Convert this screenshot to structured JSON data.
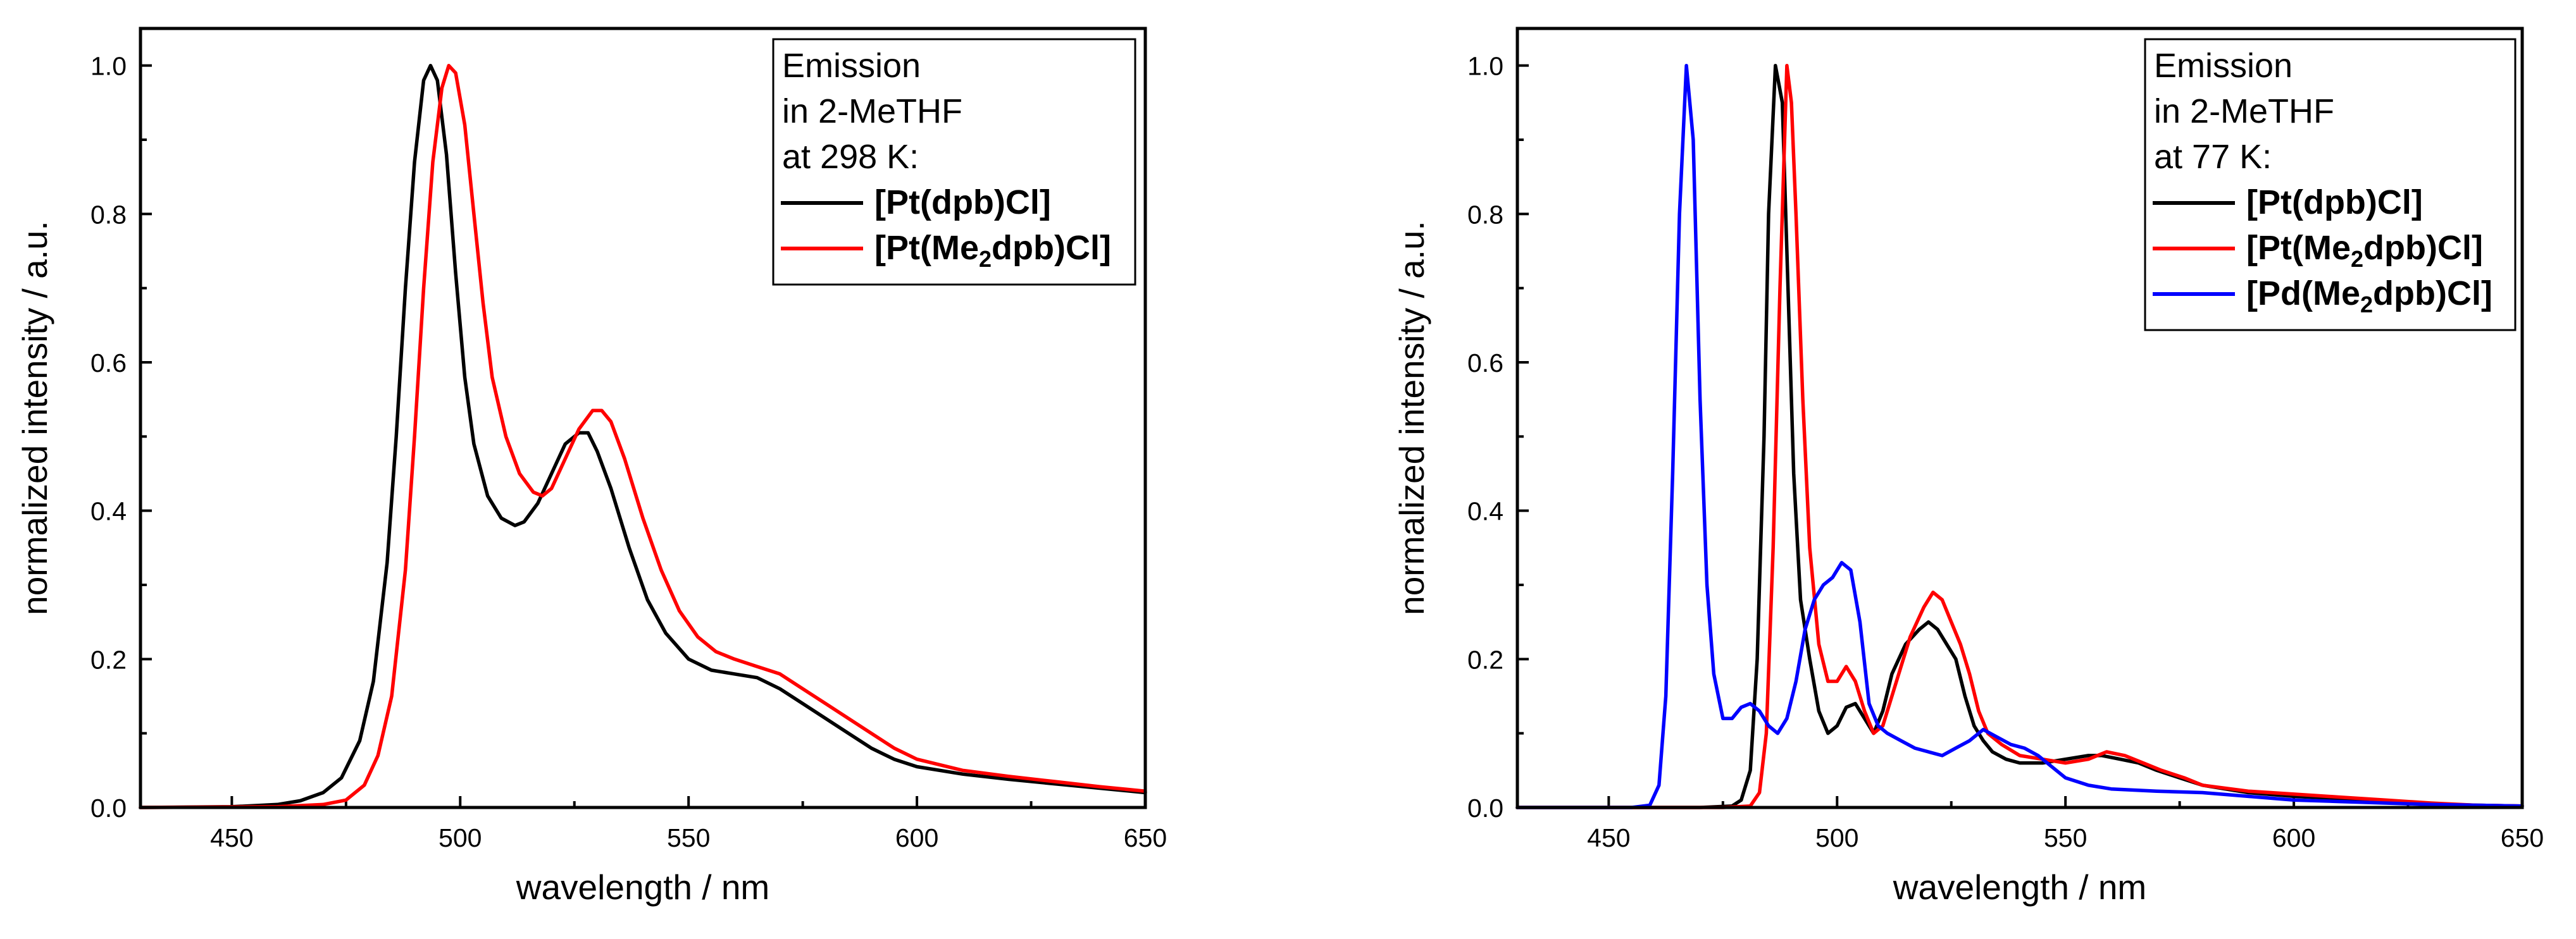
{
  "chart_data": [
    {
      "type": "line",
      "xlabel": "wavelength / nm",
      "ylabel": "normalized intensity / a.u.",
      "xlim": [
        430,
        650
      ],
      "ylim": [
        0,
        1.05
      ],
      "x_ticks": [
        "450",
        "500",
        "550",
        "600",
        "650"
      ],
      "y_ticks": [
        "0.0",
        "0.2",
        "0.4",
        "0.6",
        "0.8",
        "1.0"
      ],
      "legend": {
        "position": "top-right",
        "header": [
          "Emission",
          "in 2-MeTHF",
          "at 298 K:"
        ]
      },
      "series": [
        {
          "name": "[Pt(dpb)Cl]",
          "label_parts": [
            "[Pt(dpb)Cl]"
          ],
          "color": "#000000",
          "points": [
            [
              430,
              0
            ],
            [
              450,
              0.001
            ],
            [
              460,
              0.004
            ],
            [
              465,
              0.009
            ],
            [
              470,
              0.02
            ],
            [
              474,
              0.04
            ],
            [
              478,
              0.09
            ],
            [
              481,
              0.17
            ],
            [
              484,
              0.33
            ],
            [
              486,
              0.5
            ],
            [
              488,
              0.7
            ],
            [
              490,
              0.87
            ],
            [
              492,
              0.98
            ],
            [
              493.5,
              1.0
            ],
            [
              495,
              0.98
            ],
            [
              497,
              0.88
            ],
            [
              499,
              0.72
            ],
            [
              501,
              0.58
            ],
            [
              503,
              0.49
            ],
            [
              506,
              0.42
            ],
            [
              509,
              0.39
            ],
            [
              512,
              0.38
            ],
            [
              514,
              0.385
            ],
            [
              517,
              0.41
            ],
            [
              520,
              0.45
            ],
            [
              523,
              0.49
            ],
            [
              526,
              0.505
            ],
            [
              528,
              0.505
            ],
            [
              530,
              0.48
            ],
            [
              533,
              0.43
            ],
            [
              537,
              0.35
            ],
            [
              541,
              0.28
            ],
            [
              545,
              0.235
            ],
            [
              550,
              0.2
            ],
            [
              555,
              0.185
            ],
            [
              560,
              0.18
            ],
            [
              565,
              0.175
            ],
            [
              570,
              0.16
            ],
            [
              575,
              0.14
            ],
            [
              580,
              0.12
            ],
            [
              585,
              0.1
            ],
            [
              590,
              0.08
            ],
            [
              595,
              0.065
            ],
            [
              600,
              0.055
            ],
            [
              610,
              0.045
            ],
            [
              620,
              0.038
            ],
            [
              630,
              0.032
            ],
            [
              640,
              0.026
            ],
            [
              650,
              0.02
            ]
          ]
        },
        {
          "name": "[Pt(Me2dpb)Cl]",
          "label_parts": [
            "[Pt(Me",
            "2",
            "dpb)Cl]"
          ],
          "color": "#ff0000",
          "points": [
            [
              430,
              0
            ],
            [
              460,
              0.001
            ],
            [
              470,
              0.004
            ],
            [
              475,
              0.01
            ],
            [
              479,
              0.03
            ],
            [
              482,
              0.07
            ],
            [
              485,
              0.15
            ],
            [
              488,
              0.32
            ],
            [
              490,
              0.5
            ],
            [
              492,
              0.7
            ],
            [
              494,
              0.87
            ],
            [
              496,
              0.97
            ],
            [
              497.5,
              1.0
            ],
            [
              499,
              0.99
            ],
            [
              501,
              0.92
            ],
            [
              503,
              0.8
            ],
            [
              505,
              0.68
            ],
            [
              507,
              0.58
            ],
            [
              510,
              0.5
            ],
            [
              513,
              0.45
            ],
            [
              516,
              0.425
            ],
            [
              518,
              0.42
            ],
            [
              520,
              0.43
            ],
            [
              523,
              0.47
            ],
            [
              526,
              0.51
            ],
            [
              529,
              0.535
            ],
            [
              531,
              0.535
            ],
            [
              533,
              0.52
            ],
            [
              536,
              0.47
            ],
            [
              540,
              0.39
            ],
            [
              544,
              0.32
            ],
            [
              548,
              0.265
            ],
            [
              552,
              0.23
            ],
            [
              556,
              0.21
            ],
            [
              560,
              0.2
            ],
            [
              565,
              0.19
            ],
            [
              570,
              0.18
            ],
            [
              575,
              0.16
            ],
            [
              580,
              0.14
            ],
            [
              585,
              0.12
            ],
            [
              590,
              0.1
            ],
            [
              595,
              0.08
            ],
            [
              600,
              0.065
            ],
            [
              610,
              0.05
            ],
            [
              620,
              0.042
            ],
            [
              630,
              0.035
            ],
            [
              640,
              0.028
            ],
            [
              650,
              0.022
            ]
          ]
        }
      ]
    },
    {
      "type": "line",
      "xlabel": "wavelength / nm",
      "ylabel": "normalized intensity / a.u.",
      "xlim": [
        430,
        650
      ],
      "ylim": [
        0,
        1.05
      ],
      "x_ticks": [
        "450",
        "500",
        "550",
        "600",
        "650"
      ],
      "y_ticks": [
        "0.0",
        "0.2",
        "0.4",
        "0.6",
        "0.8",
        "1.0"
      ],
      "legend": {
        "position": "top-right",
        "header": [
          "Emission",
          "in 2-MeTHF",
          "at 77 K:"
        ]
      },
      "series": [
        {
          "name": "[Pt(dpb)Cl]",
          "label_parts": [
            "[Pt(dpb)Cl]"
          ],
          "color": "#000000",
          "points": [
            [
              430,
              0
            ],
            [
              470,
              0
            ],
            [
              477,
              0.002
            ],
            [
              479,
              0.01
            ],
            [
              481,
              0.05
            ],
            [
              482.5,
              0.2
            ],
            [
              484,
              0.5
            ],
            [
              485,
              0.8
            ],
            [
              486.5,
              1.0
            ],
            [
              488,
              0.95
            ],
            [
              489,
              0.75
            ],
            [
              490.5,
              0.45
            ],
            [
              492,
              0.28
            ],
            [
              494,
              0.2
            ],
            [
              496,
              0.13
            ],
            [
              498,
              0.1
            ],
            [
              500,
              0.11
            ],
            [
              502,
              0.135
            ],
            [
              504,
              0.14
            ],
            [
              506,
              0.12
            ],
            [
              508,
              0.1
            ],
            [
              510,
              0.13
            ],
            [
              512,
              0.18
            ],
            [
              515,
              0.22
            ],
            [
              518,
              0.24
            ],
            [
              520,
              0.25
            ],
            [
              522,
              0.24
            ],
            [
              524,
              0.22
            ],
            [
              526,
              0.2
            ],
            [
              528,
              0.15
            ],
            [
              530,
              0.11
            ],
            [
              532,
              0.09
            ],
            [
              534,
              0.075
            ],
            [
              537,
              0.065
            ],
            [
              540,
              0.06
            ],
            [
              545,
              0.06
            ],
            [
              550,
              0.065
            ],
            [
              555,
              0.07
            ],
            [
              558,
              0.07
            ],
            [
              562,
              0.065
            ],
            [
              566,
              0.06
            ],
            [
              570,
              0.05
            ],
            [
              575,
              0.04
            ],
            [
              580,
              0.03
            ],
            [
              590,
              0.02
            ],
            [
              600,
              0.015
            ],
            [
              610,
              0.012
            ],
            [
              620,
              0.008
            ],
            [
              630,
              0.005
            ],
            [
              640,
              0.003
            ],
            [
              650,
              0.002
            ]
          ]
        },
        {
          "name": "[Pt(Me2dpb)Cl]",
          "label_parts": [
            "[Pt(Me",
            "2",
            "dpb)Cl]"
          ],
          "color": "#ff0000",
          "points": [
            [
              430,
              0
            ],
            [
              475,
              0
            ],
            [
              481,
              0.002
            ],
            [
              483,
              0.02
            ],
            [
              484.5,
              0.1
            ],
            [
              486,
              0.35
            ],
            [
              487.5,
              0.7
            ],
            [
              489,
              1.0
            ],
            [
              490,
              0.95
            ],
            [
              491,
              0.8
            ],
            [
              492.5,
              0.55
            ],
            [
              494,
              0.35
            ],
            [
              496,
              0.22
            ],
            [
              498,
              0.17
            ],
            [
              500,
              0.17
            ],
            [
              502,
              0.19
            ],
            [
              504,
              0.17
            ],
            [
              506,
              0.13
            ],
            [
              508,
              0.1
            ],
            [
              510,
              0.11
            ],
            [
              513,
              0.17
            ],
            [
              516,
              0.23
            ],
            [
              519,
              0.27
            ],
            [
              521,
              0.29
            ],
            [
              523,
              0.28
            ],
            [
              525,
              0.25
            ],
            [
              527,
              0.22
            ],
            [
              529,
              0.18
            ],
            [
              531,
              0.13
            ],
            [
              533,
              0.1
            ],
            [
              536,
              0.085
            ],
            [
              540,
              0.07
            ],
            [
              545,
              0.065
            ],
            [
              550,
              0.06
            ],
            [
              555,
              0.065
            ],
            [
              559,
              0.075
            ],
            [
              563,
              0.07
            ],
            [
              567,
              0.06
            ],
            [
              571,
              0.05
            ],
            [
              576,
              0.04
            ],
            [
              580,
              0.03
            ],
            [
              590,
              0.022
            ],
            [
              600,
              0.018
            ],
            [
              610,
              0.014
            ],
            [
              620,
              0.01
            ],
            [
              630,
              0.006
            ],
            [
              640,
              0.003
            ],
            [
              650,
              0.002
            ]
          ]
        },
        {
          "name": "[Pd(Me2dpb)Cl]",
          "label_parts": [
            "[Pd(Me",
            "2",
            "dpb)Cl]"
          ],
          "color": "#0000ff",
          "points": [
            [
              430,
              0
            ],
            [
              455,
              0
            ],
            [
              459,
              0.003
            ],
            [
              461,
              0.03
            ],
            [
              462.5,
              0.15
            ],
            [
              464,
              0.45
            ],
            [
              465.5,
              0.8
            ],
            [
              467,
              1.0
            ],
            [
              468.5,
              0.9
            ],
            [
              470,
              0.55
            ],
            [
              471.5,
              0.3
            ],
            [
              473,
              0.18
            ],
            [
              475,
              0.12
            ],
            [
              477,
              0.12
            ],
            [
              479,
              0.135
            ],
            [
              481,
              0.14
            ],
            [
              483,
              0.13
            ],
            [
              485,
              0.11
            ],
            [
              487,
              0.1
            ],
            [
              489,
              0.12
            ],
            [
              491,
              0.17
            ],
            [
              493,
              0.24
            ],
            [
              495,
              0.28
            ],
            [
              497,
              0.3
            ],
            [
              499,
              0.31
            ],
            [
              501,
              0.33
            ],
            [
              503,
              0.32
            ],
            [
              505,
              0.25
            ],
            [
              507,
              0.14
            ],
            [
              509,
              0.11
            ],
            [
              511,
              0.1
            ],
            [
              514,
              0.09
            ],
            [
              517,
              0.08
            ],
            [
              520,
              0.075
            ],
            [
              523,
              0.07
            ],
            [
              526,
              0.08
            ],
            [
              529,
              0.09
            ],
            [
              532,
              0.105
            ],
            [
              535,
              0.095
            ],
            [
              538,
              0.085
            ],
            [
              541,
              0.08
            ],
            [
              544,
              0.07
            ],
            [
              547,
              0.055
            ],
            [
              550,
              0.04
            ],
            [
              555,
              0.03
            ],
            [
              560,
              0.025
            ],
            [
              570,
              0.022
            ],
            [
              580,
              0.02
            ],
            [
              590,
              0.015
            ],
            [
              600,
              0.01
            ],
            [
              610,
              0.008
            ],
            [
              620,
              0.006
            ],
            [
              630,
              0.004
            ],
            [
              640,
              0.003
            ],
            [
              650,
              0.002
            ]
          ]
        }
      ]
    }
  ]
}
